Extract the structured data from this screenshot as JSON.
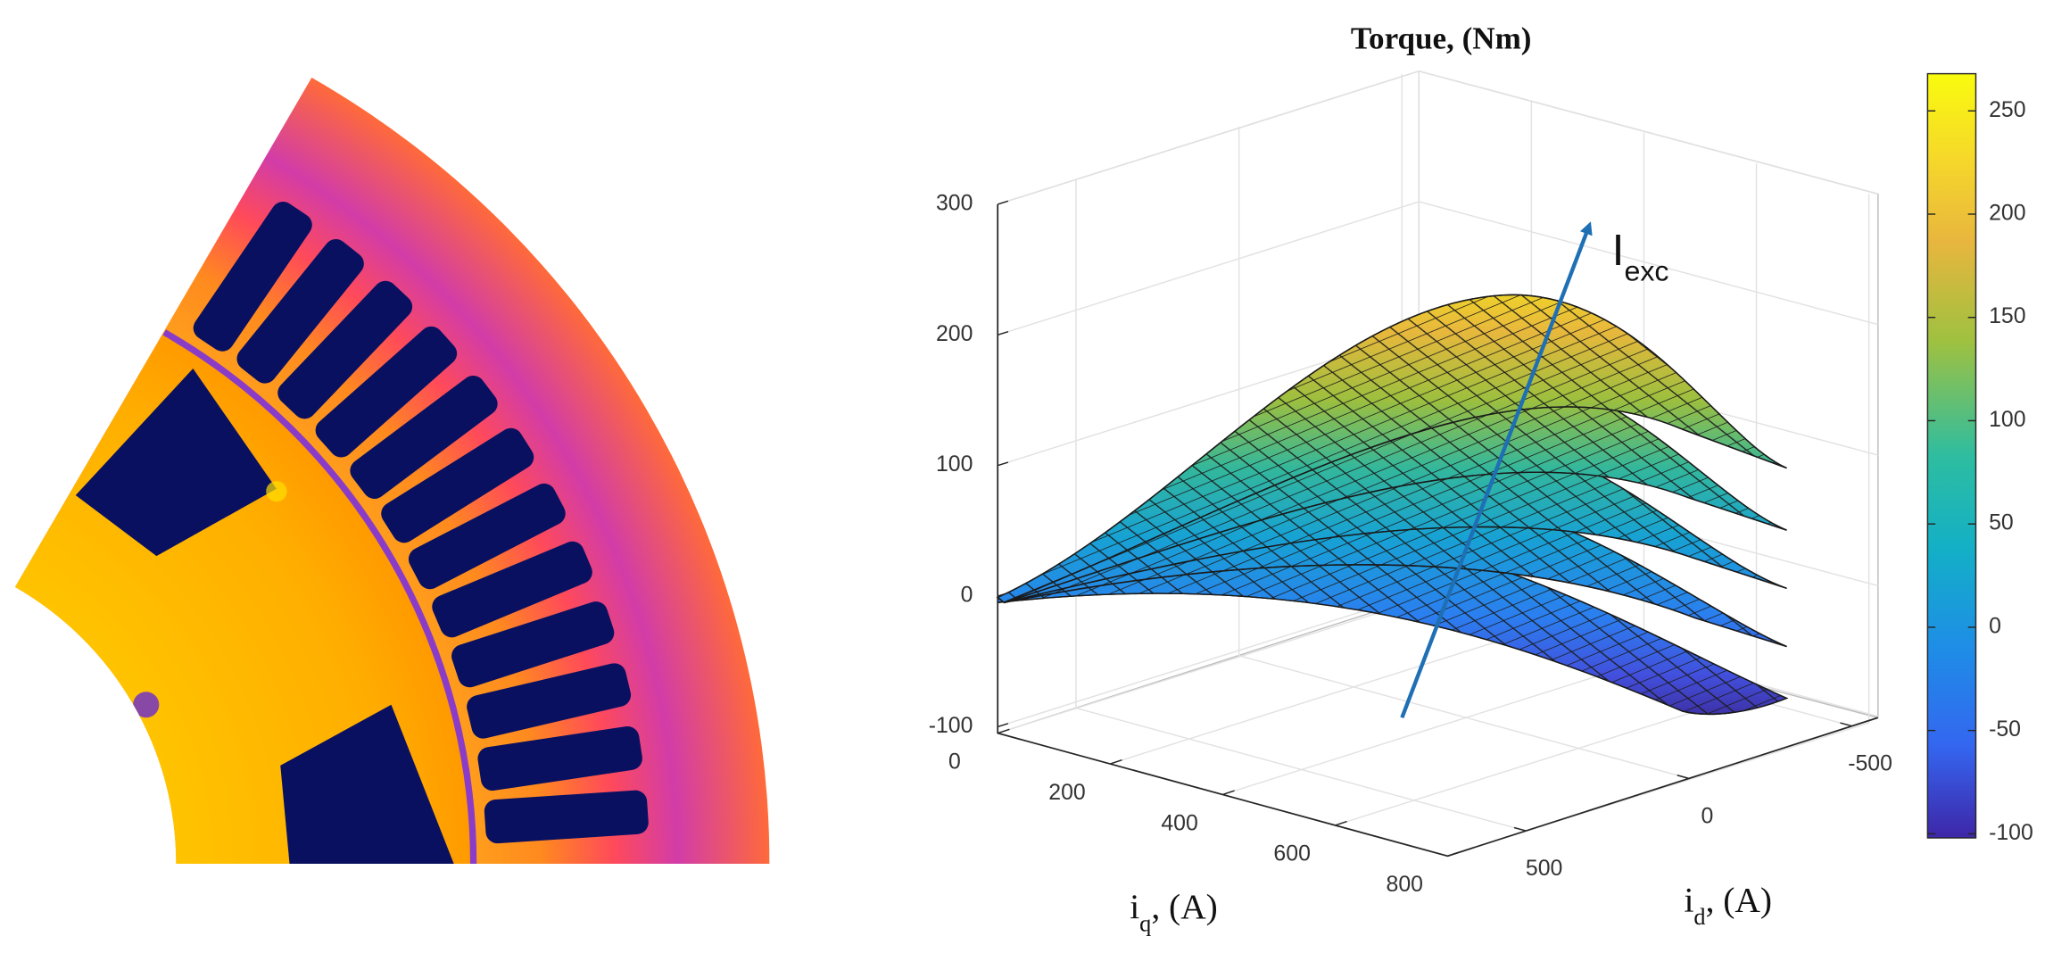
{
  "chart_data": {
    "type": "surface",
    "title": "Torque, (Nm)",
    "xlabel": {
      "main": "i",
      "sub": "q",
      "rest": ", (A)"
    },
    "ylabel": {
      "main": "i",
      "sub": "d",
      "rest": ", (A)"
    },
    "xlim": [
      0,
      800
    ],
    "xticks": [
      0,
      200,
      400,
      600,
      800
    ],
    "ylim": [
      740,
      -580
    ],
    "yticks": [
      500,
      0,
      -500
    ],
    "zlim": [
      -100,
      300
    ],
    "zticks": [
      -100,
      0,
      100,
      200,
      300
    ],
    "grid": true,
    "colorbar": {
      "clim": [
        -102,
        268
      ],
      "ticks": [
        -100,
        -50,
        0,
        50,
        100,
        150,
        200,
        250
      ]
    },
    "annotation": {
      "main": "I",
      "sub": "exc",
      "color": "#1f6fb5"
    }
  }
}
